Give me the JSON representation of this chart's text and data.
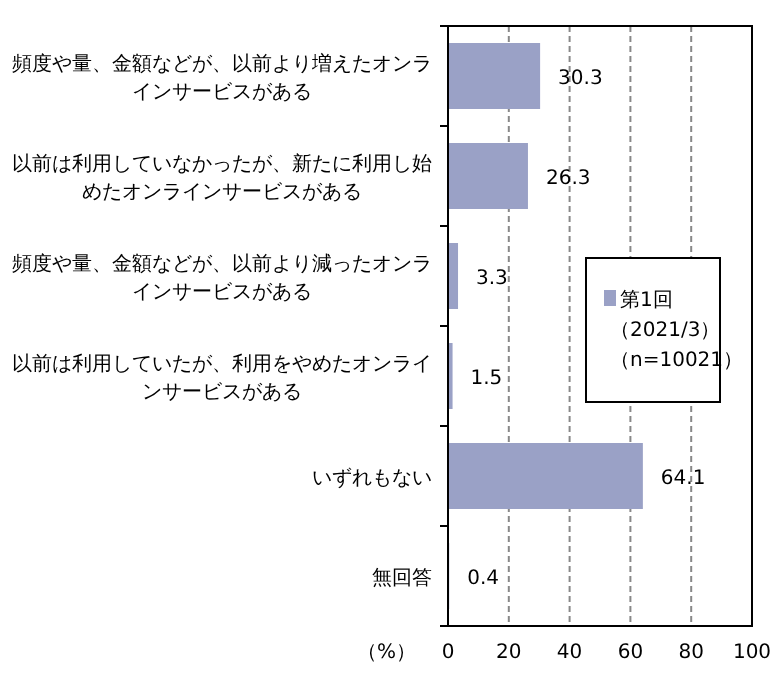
{
  "chart_data": {
    "type": "bar",
    "orientation": "horizontal",
    "categories": [
      "頻度や量、金額などが、以前より増えたオンラインサービスがある",
      "以前は利用していなかったが、新たに利用し始めたオンラインサービスがある",
      "頻度や量、金額などが、以前より減ったオンラインサービスがある",
      "以前は利用していたが、利用をやめたオンラインサービスがある",
      "いずれもない",
      "無回答"
    ],
    "series": [
      {
        "name": "第1回（2021/3）（n=10021）",
        "color": "#9aa1c6",
        "values": [
          30.3,
          26.3,
          3.3,
          1.5,
          64.1,
          0.4
        ]
      }
    ],
    "data_labels": true,
    "xlabel": "（%）",
    "xlim": [
      0,
      100
    ],
    "xticks": [
      0,
      20,
      40,
      60,
      80,
      100
    ],
    "grid": "x",
    "legend": "right"
  }
}
